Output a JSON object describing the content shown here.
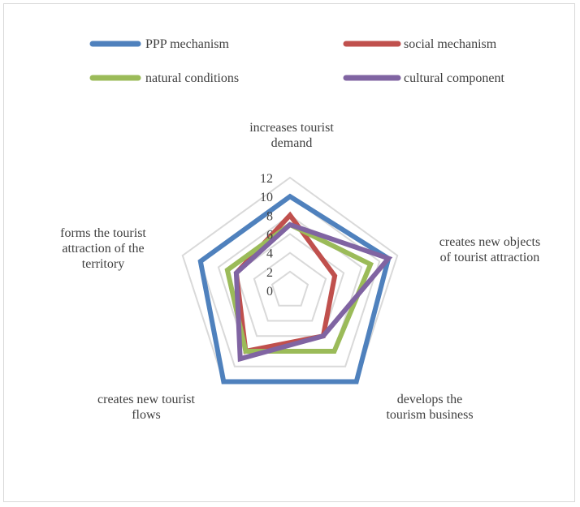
{
  "chart_data": {
    "type": "radar",
    "categories": [
      [
        "increases tourist",
        "demand"
      ],
      [
        "creates new objects",
        "of tourist attraction"
      ],
      [
        "develops the",
        "tourism business"
      ],
      [
        "creates new tourist",
        "flows"
      ],
      [
        "forms the tourist",
        "attraction of the",
        "territory"
      ]
    ],
    "rlim": [
      0,
      12
    ],
    "ticks": [
      0,
      2,
      4,
      6,
      8,
      10,
      12
    ],
    "legend_position": "top",
    "grid": true,
    "series": [
      {
        "name": "PPP mechanism",
        "color": "#4f81bd",
        "values": [
          10,
          11,
          12,
          12,
          10
        ]
      },
      {
        "name": "social mechanism",
        "color": "#c0504d",
        "values": [
          8,
          5,
          6,
          8,
          6
        ]
      },
      {
        "name": "natural conditions",
        "color": "#9bbb59",
        "values": [
          7,
          9,
          8,
          8,
          7
        ]
      },
      {
        "name": "cultural component",
        "color": "#8064a2",
        "values": [
          7,
          11,
          6,
          9,
          6
        ]
      }
    ]
  }
}
